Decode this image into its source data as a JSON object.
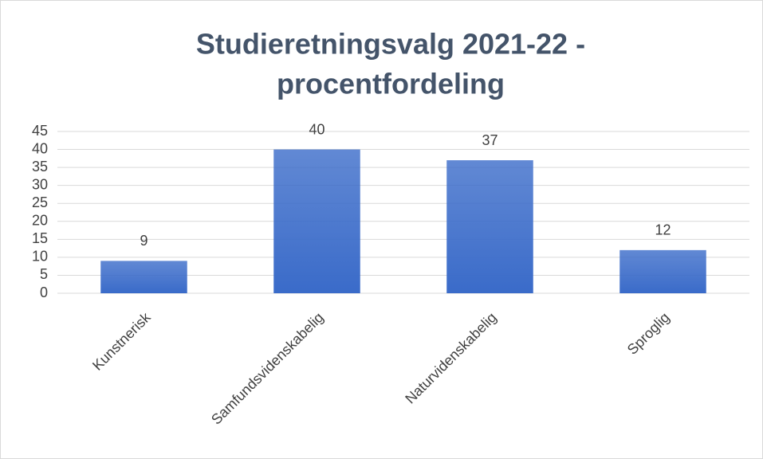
{
  "chart_data": {
    "type": "bar",
    "title": [
      "Studieretningsvalg 2021-22 -",
      "procentfordeling"
    ],
    "categories": [
      "Kunstnerisk",
      "Samfundsvidenskabelig",
      "Naturvidenskabelig",
      "Sproglig"
    ],
    "values": [
      9,
      40,
      37,
      12
    ],
    "color": "#3a6bc9",
    "ylim": [
      0,
      45
    ],
    "yticks": [
      0,
      5,
      10,
      15,
      20,
      25,
      30,
      35,
      40,
      45
    ],
    "grid": true
  }
}
